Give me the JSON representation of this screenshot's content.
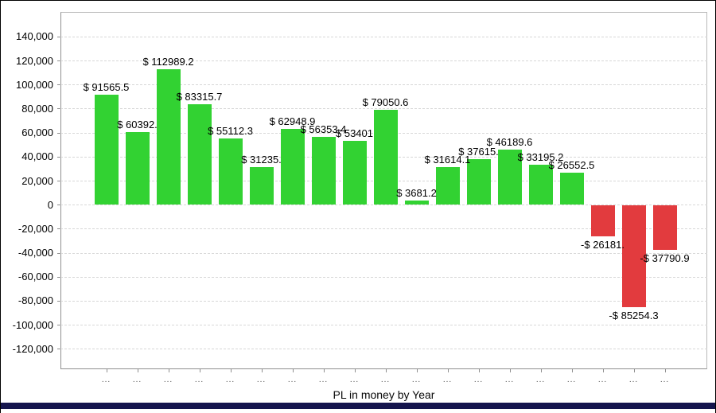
{
  "window": {
    "background": "#ffffff",
    "bottom_bar_color": "#15154d"
  },
  "chart_data": {
    "type": "bar",
    "title": "",
    "xlabel": "PL in money by Year",
    "ylabel": "",
    "legend": "none",
    "grid": "dashed-horizontal",
    "ylim": [
      -137000,
      160500
    ],
    "y_ticks": [
      "140,000",
      "120,000",
      "100,000",
      "80,000",
      "60,000",
      "40,000",
      "20,000",
      "0",
      "-20,000",
      "-40,000",
      "-60,000",
      "-80,000",
      "-100,000",
      "-120,000"
    ],
    "y_tick_values": [
      140000,
      120000,
      100000,
      80000,
      60000,
      40000,
      20000,
      0,
      -20000,
      -40000,
      -60000,
      -80000,
      -100000,
      -120000
    ],
    "categories": [
      "...",
      "...",
      "...",
      "...",
      "...",
      "...",
      "...",
      "...",
      "...",
      "...",
      "...",
      "...",
      "...",
      "...",
      "...",
      "...",
      "...",
      "...",
      "..."
    ],
    "values": [
      91565.5,
      60392,
      112989.2,
      83315.7,
      55112.3,
      31235,
      62948.9,
      56353.4,
      53401,
      79050.6,
      3681.2,
      31614.1,
      37615,
      46189.6,
      33195.2,
      26552.5,
      -26181,
      -85254.3,
      -37790.9
    ],
    "bar_labels": [
      "$ 91565.5",
      "$ 60392.",
      "$ 112989.2",
      "$ 83315.7",
      "$ 55112.3",
      "$ 31235.",
      "$ 62948.9",
      "$ 56353.4",
      "$ 53401",
      "$ 79050.6",
      "$ 3681.2",
      "$ 31614.1",
      "$ 37615.",
      "$ 46189.6",
      "$ 33195.2",
      "$ 26552.5",
      "-$ 26181.",
      "-$ 85254.3",
      "-$ 37790.9"
    ],
    "positive_color": "#32d232",
    "negative_color": "#e23b3e"
  }
}
